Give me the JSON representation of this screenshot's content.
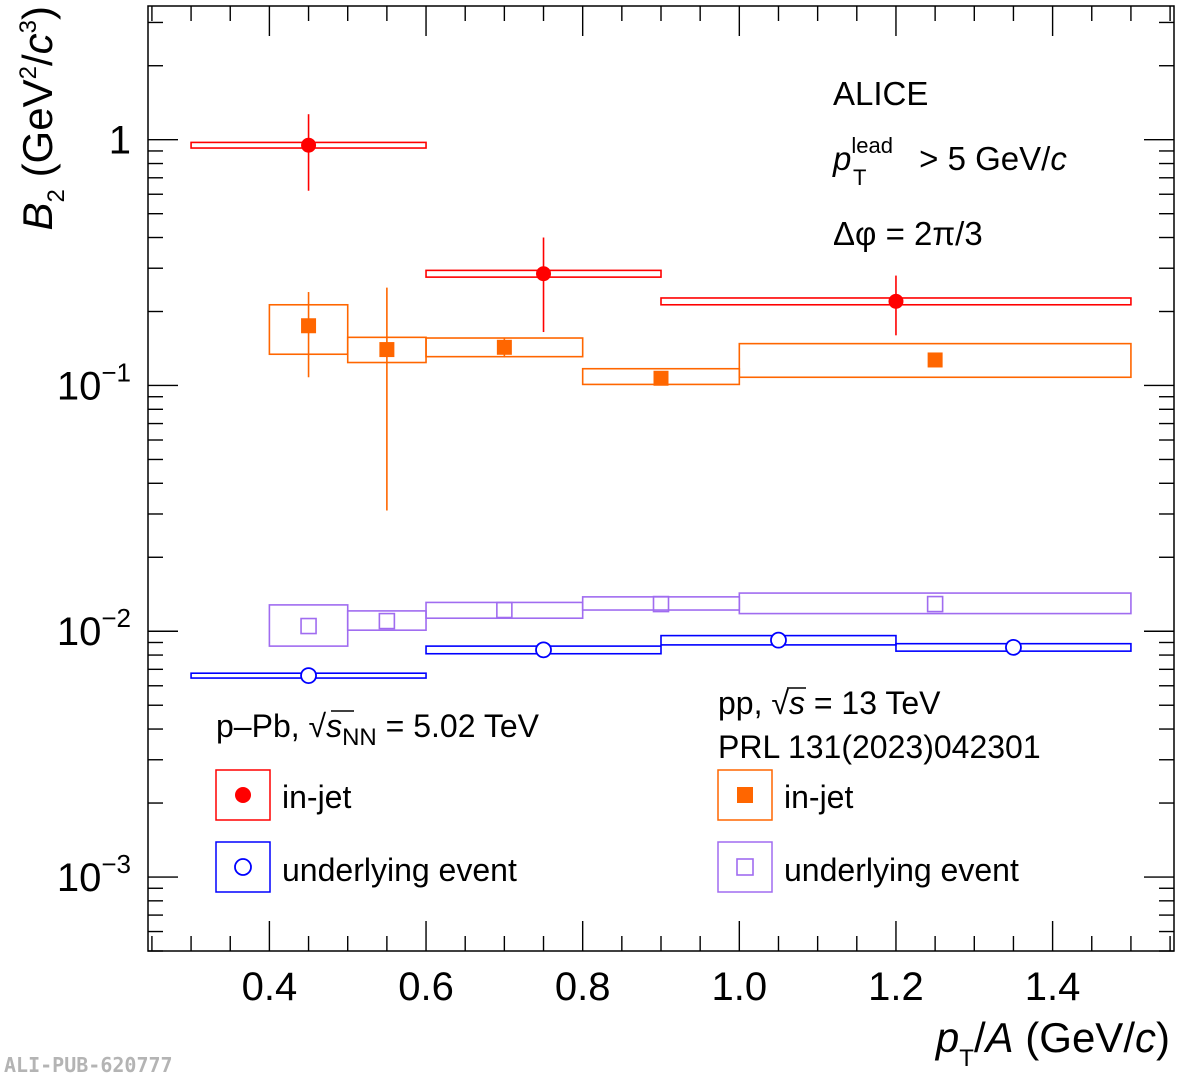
{
  "colors": {
    "ppb_injet": "#ff0000",
    "ppb_ue": "#0000ff",
    "pp_injet": "#ff6600",
    "pp_ue": "#a06cf0"
  },
  "chart_data": {
    "type": "scatter",
    "experiment": "ALICE",
    "xlabel": {
      "main_italic": "p",
      "sub": "T",
      "rest": "/",
      "italic2": "A",
      "units": " (GeV/",
      "unit_italic": "c",
      "close": ")"
    },
    "ylabel": {
      "main_italic": "B",
      "sub": "2",
      "units": " (GeV",
      "sup1": "2",
      "slash": "/",
      "unit_italic": "c",
      "sup2": "3",
      "close": ")"
    },
    "xlim": [
      0.245,
      1.555
    ],
    "ylim": [
      0.0005,
      3.5
    ],
    "log_y": true,
    "x_ticks": [
      "0.4",
      "0.6",
      "0.8",
      "1.0",
      "1.2",
      "1.4"
    ],
    "y_ticks": [
      {
        "base": "10",
        "exp": "−3",
        "value": 0.001
      },
      {
        "base": "10",
        "exp": "−2",
        "value": 0.01
      },
      {
        "base": "10",
        "exp": "−1",
        "value": 0.1
      },
      {
        "base": "1",
        "exp": "",
        "value": 1
      }
    ],
    "annotations": {
      "alice": "ALICE",
      "ptlead_p": "p",
      "ptlead_sup": "lead",
      "ptlead_sub": "T",
      "ptlead_rest": " > 5 GeV/",
      "ptlead_c": "c",
      "dphi": "Δφ = 2π/3"
    },
    "legend_left": {
      "header_prefix": "p–Pb, ",
      "header_s": "s",
      "header_sub": "NN",
      "header_suffix": " = 5.02 TeV",
      "entries": [
        "in-jet",
        "underlying event"
      ]
    },
    "legend_right": {
      "header_prefix": "pp, ",
      "header_s": "s",
      "header_suffix": " = 13 TeV",
      "reference": "PRL 131(2023)042301",
      "entries": [
        "in-jet",
        "underlying event"
      ]
    },
    "series": [
      {
        "name": "p–Pb in-jet",
        "key": "ppb_injet",
        "marker": "filled-circle",
        "points": [
          {
            "x": 0.45,
            "y": 0.95,
            "x_lo": 0.3,
            "x_hi": 0.6,
            "stat_lo": 0.62,
            "stat_hi": 1.27,
            "sys_lo": 0.925,
            "sys_hi": 0.975
          },
          {
            "x": 0.75,
            "y": 0.285,
            "x_lo": 0.6,
            "x_hi": 0.9,
            "stat_lo": 0.165,
            "stat_hi": 0.4,
            "sys_lo": 0.276,
            "sys_hi": 0.294
          },
          {
            "x": 1.2,
            "y": 0.22,
            "x_lo": 0.9,
            "x_hi": 1.5,
            "stat_lo": 0.16,
            "stat_hi": 0.28,
            "sys_lo": 0.213,
            "sys_hi": 0.227
          }
        ]
      },
      {
        "name": "p–Pb underlying event",
        "key": "ppb_ue",
        "marker": "open-circle",
        "points": [
          {
            "x": 0.45,
            "y": 0.0066,
            "x_lo": 0.3,
            "x_hi": 0.6,
            "sys_lo": 0.00645,
            "sys_hi": 0.00675
          },
          {
            "x": 0.75,
            "y": 0.0084,
            "x_lo": 0.6,
            "x_hi": 0.9,
            "sys_lo": 0.0081,
            "sys_hi": 0.0087
          },
          {
            "x": 1.05,
            "y": 0.0092,
            "x_lo": 0.9,
            "x_hi": 1.2,
            "sys_lo": 0.0088,
            "sys_hi": 0.0096
          },
          {
            "x": 1.35,
            "y": 0.0086,
            "x_lo": 1.2,
            "x_hi": 1.5,
            "sys_lo": 0.0083,
            "sys_hi": 0.0089
          }
        ]
      },
      {
        "name": "pp in-jet",
        "key": "pp_injet",
        "marker": "filled-square",
        "points": [
          {
            "x": 0.45,
            "y": 0.175,
            "x_lo": 0.4,
            "x_hi": 0.5,
            "stat_lo": 0.108,
            "stat_hi": 0.24,
            "sys_lo": 0.134,
            "sys_hi": 0.213
          },
          {
            "x": 0.55,
            "y": 0.14,
            "x_lo": 0.5,
            "x_hi": 0.6,
            "stat_lo": 0.031,
            "stat_hi": 0.25,
            "sys_lo": 0.124,
            "sys_hi": 0.157
          },
          {
            "x": 0.7,
            "y": 0.143,
            "x_lo": 0.6,
            "x_hi": 0.8,
            "stat_lo": 0.13,
            "stat_hi": 0.156,
            "sys_lo": 0.131,
            "sys_hi": 0.156
          },
          {
            "x": 0.9,
            "y": 0.107,
            "x_lo": 0.8,
            "x_hi": 1.0,
            "sys_lo": 0.101,
            "sys_hi": 0.117
          },
          {
            "x": 1.25,
            "y": 0.127,
            "x_lo": 1.0,
            "x_hi": 1.5,
            "sys_lo": 0.108,
            "sys_hi": 0.148
          }
        ]
      },
      {
        "name": "pp underlying event",
        "key": "pp_ue",
        "marker": "open-square",
        "points": [
          {
            "x": 0.45,
            "y": 0.0105,
            "x_lo": 0.4,
            "x_hi": 0.5,
            "sys_lo": 0.0087,
            "sys_hi": 0.0128
          },
          {
            "x": 0.55,
            "y": 0.011,
            "x_lo": 0.5,
            "x_hi": 0.6,
            "sys_lo": 0.0101,
            "sys_hi": 0.0121
          },
          {
            "x": 0.7,
            "y": 0.0122,
            "x_lo": 0.6,
            "x_hi": 0.8,
            "sys_lo": 0.0113,
            "sys_hi": 0.0131
          },
          {
            "x": 0.9,
            "y": 0.0129,
            "x_lo": 0.8,
            "x_hi": 1.0,
            "sys_lo": 0.0122,
            "sys_hi": 0.0138
          },
          {
            "x": 1.25,
            "y": 0.0129,
            "x_lo": 1.0,
            "x_hi": 1.5,
            "sys_lo": 0.0118,
            "sys_hi": 0.0143
          }
        ]
      }
    ]
  },
  "pub_id": "ALI-PUB-620777"
}
